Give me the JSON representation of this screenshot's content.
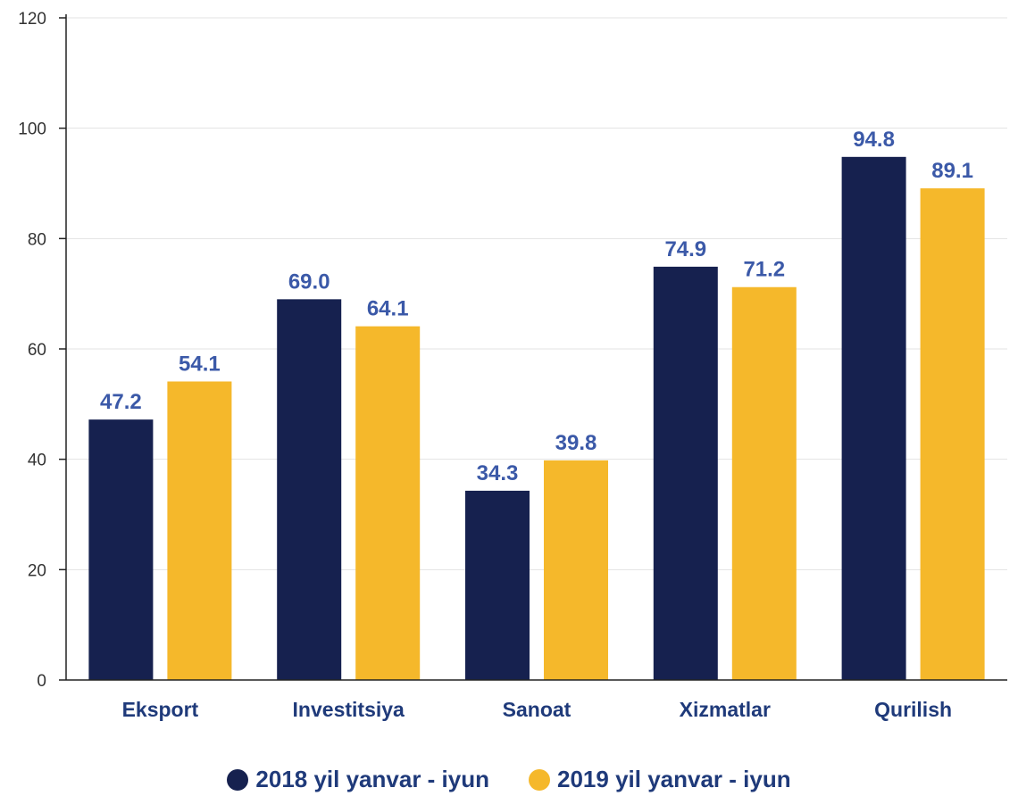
{
  "chart_data": {
    "type": "bar",
    "categories": [
      "Eksport",
      "Investitsiya",
      "Sanoat",
      "Xizmatlar",
      "Qurilish"
    ],
    "series": [
      {
        "name": "2018 yil yanvar - iyun",
        "color": "#16214f",
        "values": [
          47.2,
          69.0,
          34.3,
          74.9,
          94.8
        ],
        "labels": [
          "47.2",
          "69.0",
          "34.3",
          "74.9",
          "94.8"
        ]
      },
      {
        "name": "2019 yil yanvar - iyun",
        "color": "#f5b82b",
        "values": [
          54.1,
          64.1,
          39.8,
          71.2,
          89.1
        ],
        "labels": [
          "54.1",
          "64.1",
          "39.8",
          "71.2",
          "89.1"
        ]
      }
    ],
    "ylim": [
      0,
      120
    ],
    "yticks": [
      "0",
      "20",
      "40",
      "60",
      "80",
      "100",
      "120"
    ],
    "grid": true,
    "legend_position": "bottom-center"
  }
}
